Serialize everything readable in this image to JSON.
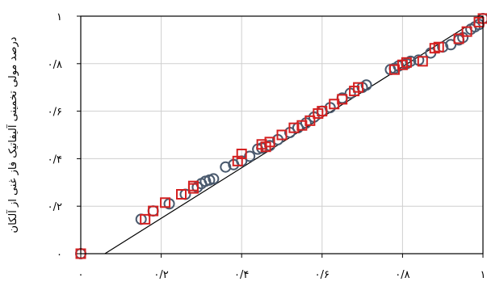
{
  "chart_data": {
    "type": "scatter",
    "title": "",
    "xlabel": "",
    "ylabel": "درصد مولی تخمینی آلیفاتیک فاز غنی از آلکان",
    "xlim": [
      0,
      1
    ],
    "ylim": [
      0,
      1
    ],
    "grid": true,
    "x_ticks": [
      0,
      0.2,
      0.4,
      0.6,
      0.8,
      1
    ],
    "x_tick_labels": [
      "٠",
      "٠/٢",
      "٠/۴",
      "٠/۶",
      "٠/٨",
      "١"
    ],
    "y_ticks": [
      0,
      0.2,
      0.4,
      0.6,
      0.8,
      1
    ],
    "y_tick_labels": [
      "٠",
      "٠/٢",
      "٠/۴",
      "٠/۶",
      "٠/٨",
      "١"
    ],
    "reference_line": {
      "x": [
        0.06,
        1.0
      ],
      "y": [
        0.0,
        1.0
      ]
    },
    "series": [
      {
        "marker": "circle",
        "color": "#4a5a6e",
        "points": [
          [
            0.0,
            0.0
          ],
          [
            0.15,
            0.145
          ],
          [
            0.18,
            0.18
          ],
          [
            0.22,
            0.21
          ],
          [
            0.26,
            0.25
          ],
          [
            0.29,
            0.28
          ],
          [
            0.3,
            0.295
          ],
          [
            0.31,
            0.305
          ],
          [
            0.32,
            0.31
          ],
          [
            0.33,
            0.315
          ],
          [
            0.36,
            0.365
          ],
          [
            0.38,
            0.375
          ],
          [
            0.4,
            0.39
          ],
          [
            0.42,
            0.41
          ],
          [
            0.44,
            0.44
          ],
          [
            0.45,
            0.445
          ],
          [
            0.47,
            0.455
          ],
          [
            0.49,
            0.48
          ],
          [
            0.52,
            0.51
          ],
          [
            0.54,
            0.53
          ],
          [
            0.56,
            0.55
          ],
          [
            0.58,
            0.575
          ],
          [
            0.6,
            0.6
          ],
          [
            0.62,
            0.615
          ],
          [
            0.65,
            0.655
          ],
          [
            0.67,
            0.675
          ],
          [
            0.7,
            0.7
          ],
          [
            0.71,
            0.71
          ],
          [
            0.77,
            0.775
          ],
          [
            0.78,
            0.78
          ],
          [
            0.79,
            0.79
          ],
          [
            0.81,
            0.8
          ],
          [
            0.82,
            0.81
          ],
          [
            0.84,
            0.815
          ],
          [
            0.87,
            0.845
          ],
          [
            0.9,
            0.87
          ],
          [
            0.92,
            0.88
          ],
          [
            0.94,
            0.9
          ],
          [
            0.95,
            0.91
          ],
          [
            0.97,
            0.945
          ],
          [
            0.98,
            0.955
          ],
          [
            0.99,
            0.965
          ],
          [
            1.0,
            0.99
          ]
        ]
      },
      {
        "marker": "square",
        "color": "#d42020",
        "points": [
          [
            0.0,
            0.0
          ],
          [
            0.16,
            0.145
          ],
          [
            0.18,
            0.18
          ],
          [
            0.21,
            0.215
          ],
          [
            0.25,
            0.25
          ],
          [
            0.28,
            0.275
          ],
          [
            0.28,
            0.285
          ],
          [
            0.39,
            0.39
          ],
          [
            0.4,
            0.42
          ],
          [
            0.45,
            0.46
          ],
          [
            0.46,
            0.45
          ],
          [
            0.47,
            0.47
          ],
          [
            0.5,
            0.5
          ],
          [
            0.53,
            0.53
          ],
          [
            0.55,
            0.54
          ],
          [
            0.57,
            0.56
          ],
          [
            0.59,
            0.59
          ],
          [
            0.6,
            0.6
          ],
          [
            0.63,
            0.63
          ],
          [
            0.65,
            0.65
          ],
          [
            0.68,
            0.685
          ],
          [
            0.69,
            0.7
          ],
          [
            0.78,
            0.775
          ],
          [
            0.8,
            0.795
          ],
          [
            0.81,
            0.805
          ],
          [
            0.85,
            0.81
          ],
          [
            0.88,
            0.865
          ],
          [
            0.89,
            0.87
          ],
          [
            0.94,
            0.905
          ],
          [
            0.96,
            0.935
          ],
          [
            0.99,
            0.975
          ],
          [
            1.0,
            0.99
          ]
        ]
      }
    ]
  }
}
